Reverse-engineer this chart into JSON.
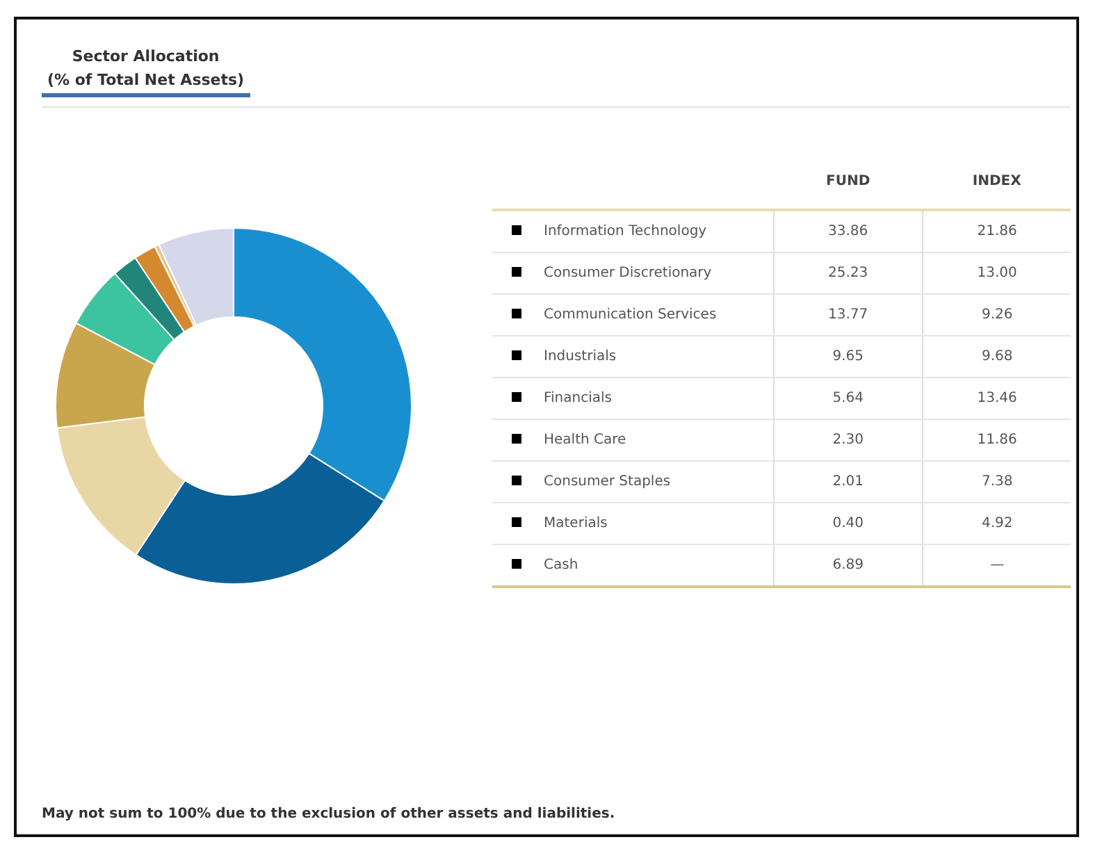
{
  "chart_data": [
    {
      "type": "donut",
      "title": "Sector Allocation",
      "subtitle": "(% of Total Net Assets)",
      "categories": [
        null,
        null,
        null,
        null,
        null,
        null,
        null,
        null,
        null
      ],
      "values": [
        33.86,
        25.23,
        13.77,
        9.65,
        5.64,
        2.3,
        2.01,
        0.4,
        6.89
      ],
      "colors": [
        "#1a8fd0",
        "#0a5f96",
        "#e8d6a4",
        "#c9a54e",
        "#3cc3a0",
        "#21857a",
        "#d4892f",
        "#e2c790",
        "#d5d8ea"
      ],
      "annotations": [
        "May not sum to 100% due to the exclusion of other assets and liabilities."
      ]
    },
    {
      "type": "other",
      "categories": [
        "Information Technology",
        "Consumer Discretionary",
        "Communication Services",
        "Industrials",
        "Financials",
        "Health Care",
        "Consumer Staples",
        "Materials",
        "Cash"
      ],
      "series": [
        {
          "name": "FUND",
          "values": [
            33.86,
            25.23,
            13.77,
            9.65,
            5.64,
            2.3,
            2.01,
            0.4,
            6.89
          ],
          "value_labels": [
            "33.86",
            "25.23",
            "13.77",
            "9.65",
            "5.64",
            "2.30",
            "2.01",
            "0.40",
            "6.89"
          ]
        },
        {
          "name": "INDEX",
          "values": [
            21.86,
            13.0,
            9.26,
            9.68,
            13.46,
            11.86,
            7.38,
            4.92,
            null
          ],
          "value_labels": [
            "21.86",
            "13.00",
            "9.26",
            "9.68",
            "13.46",
            "11.86",
            "7.38",
            "4.92",
            "—"
          ]
        }
      ]
    }
  ]
}
